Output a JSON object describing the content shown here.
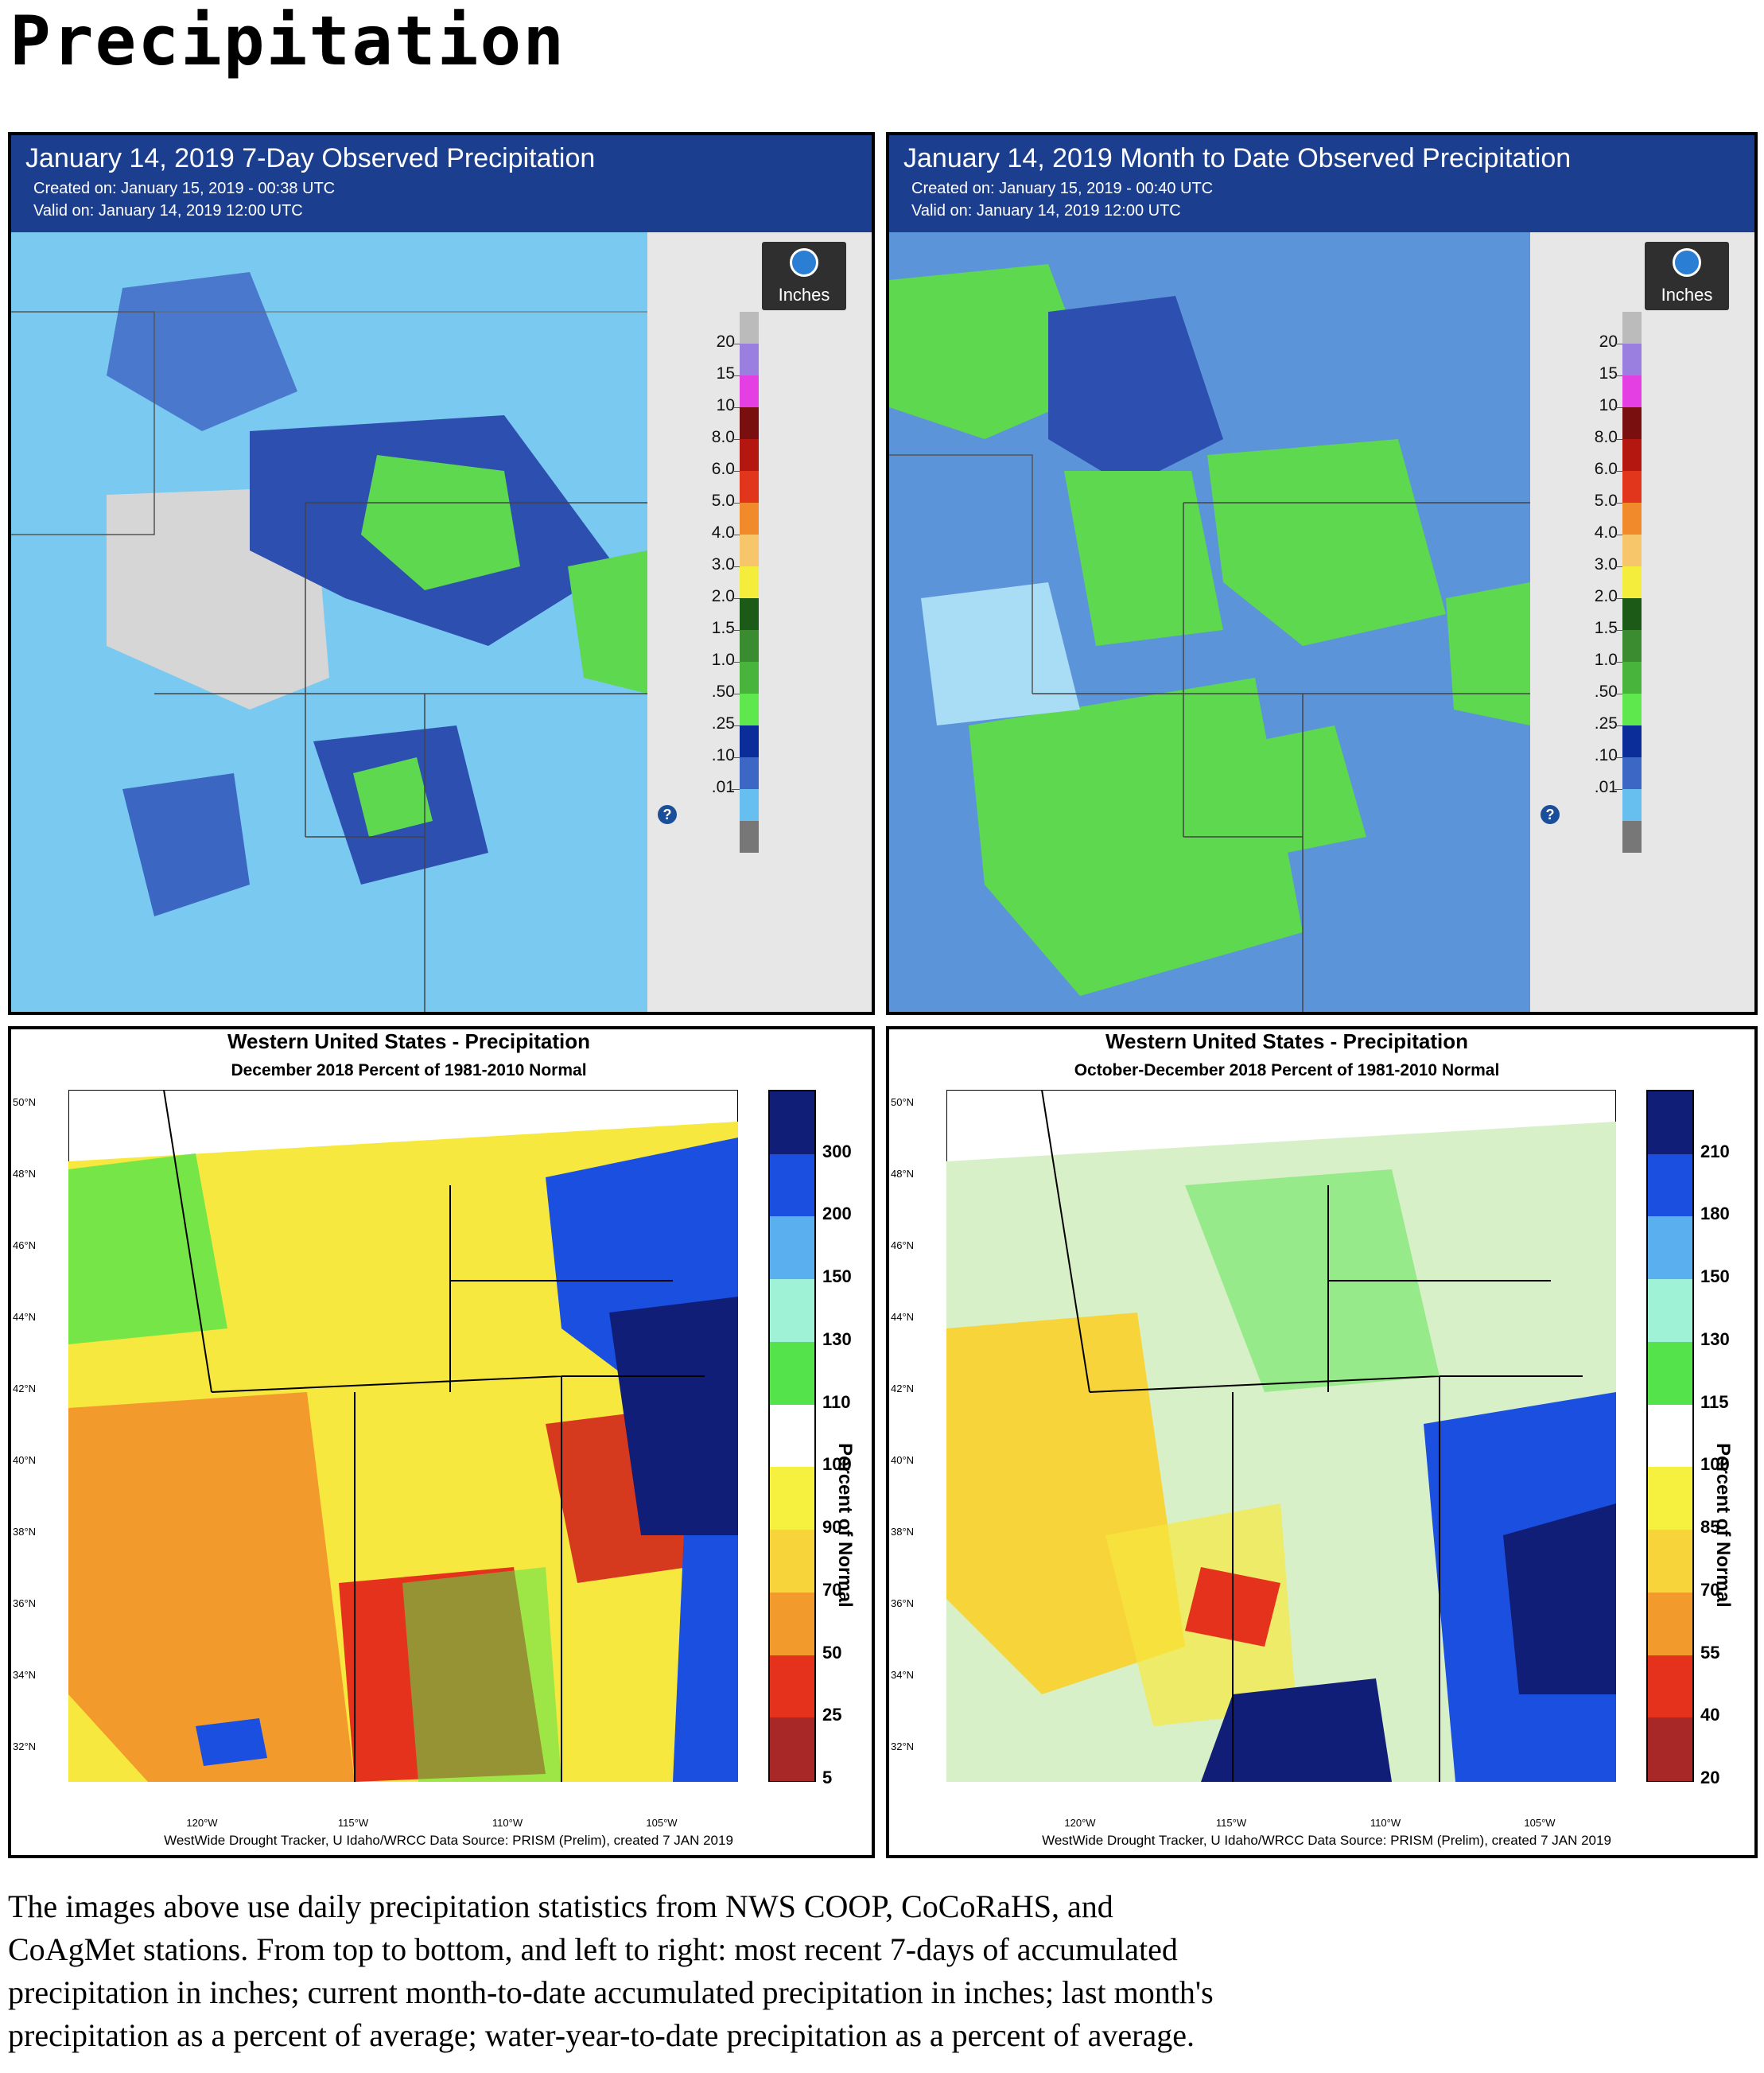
{
  "page": {
    "title": "Precipitation",
    "caption_lines": [
      "The images above use daily precipitation statistics from NWS COOP, CoCoRaHS, and",
      "CoAgMet stations. From top to bottom, and left to right: most recent 7-days of accumulated",
      "precipitation in inches; current month-to-date accumulated precipitation in inches; last month's",
      "precipitation as a percent of average; water-year-to-date precipitation as a percent of average."
    ]
  },
  "noaa_panels": [
    {
      "title": "January 14, 2019 7-Day Observed Precipitation",
      "created": "Created on: January 15, 2019 - 00:38 UTC",
      "valid": "Valid on: January 14, 2019 12:00 UTC",
      "units": "Inches"
    },
    {
      "title": "January 14, 2019 Month to Date Observed Precipitation",
      "created": "Created on: January 15, 2019 - 00:40 UTC",
      "valid": "Valid on: January 14, 2019 12:00 UTC",
      "units": "Inches"
    }
  ],
  "noaa_legend": {
    "labels": [
      "20",
      "15",
      "10",
      "8.0",
      "6.0",
      "5.0",
      "4.0",
      "3.0",
      "2.0",
      "1.5",
      "1.0",
      ".50",
      ".25",
      ".10",
      ".01"
    ],
    "colors": [
      "#9b7fe0",
      "#e33fe3",
      "#7a0f0f",
      "#b3170f",
      "#e2361c",
      "#f08a2a",
      "#f7c66a",
      "#f5ed3c",
      "#1c5a17",
      "#3b8b31",
      "#49b43b",
      "#5fe84e",
      "#0a2d9a",
      "#3d67c4",
      "#66bfef"
    ],
    "help_icon": "question-icon"
  },
  "wrcc_panels": [
    {
      "title": "Western United States - Precipitation",
      "subtitle": "December 2018  Percent of 1981-2010 Normal",
      "colorbar_labels": [
        "300",
        "200",
        "150",
        "130",
        "110",
        "100",
        "90",
        "70",
        "50",
        "25",
        "5"
      ],
      "colorbar_colors": [
        "#101e78",
        "#1a4fe0",
        "#5ab0ef",
        "#9ff2d6",
        "#55e34b",
        "#ffffff",
        "#f6f13e",
        "#f7d43a",
        "#f29a2c",
        "#e5321c",
        "#a82828"
      ],
      "colorbar_title": "Percent of Normal",
      "lat_labels": [
        "50°N",
        "48°N",
        "46°N",
        "44°N",
        "42°N",
        "40°N",
        "38°N",
        "36°N",
        "34°N",
        "32°N"
      ],
      "lon_labels": [
        "120°W",
        "115°W",
        "110°W",
        "105°W"
      ],
      "credit": "WestWide Drought Tracker, U Idaho/WRCC Data Source: PRISM (Prelim), created  7 JAN 2019"
    },
    {
      "title": "Western United States - Precipitation",
      "subtitle": "October-December 2018  Percent of 1981-2010 Normal",
      "colorbar_labels": [
        "210",
        "180",
        "150",
        "130",
        "115",
        "100",
        "85",
        "70",
        "55",
        "40",
        "20"
      ],
      "colorbar_colors": [
        "#101e78",
        "#1a4fe0",
        "#5ab0ef",
        "#9ff2d6",
        "#55e34b",
        "#ffffff",
        "#f6f13e",
        "#f7d43a",
        "#f29a2c",
        "#e5321c",
        "#a82828"
      ],
      "colorbar_title": "Percent of Normal",
      "lat_labels": [
        "50°N",
        "48°N",
        "46°N",
        "44°N",
        "42°N",
        "40°N",
        "38°N",
        "36°N",
        "34°N",
        "32°N"
      ],
      "lon_labels": [
        "120°W",
        "115°W",
        "110°W",
        "105°W"
      ],
      "credit": "WestWide Drought Tracker, U Idaho/WRCC Data Source: PRISM (Prelim), created  7 JAN 2019"
    }
  ]
}
